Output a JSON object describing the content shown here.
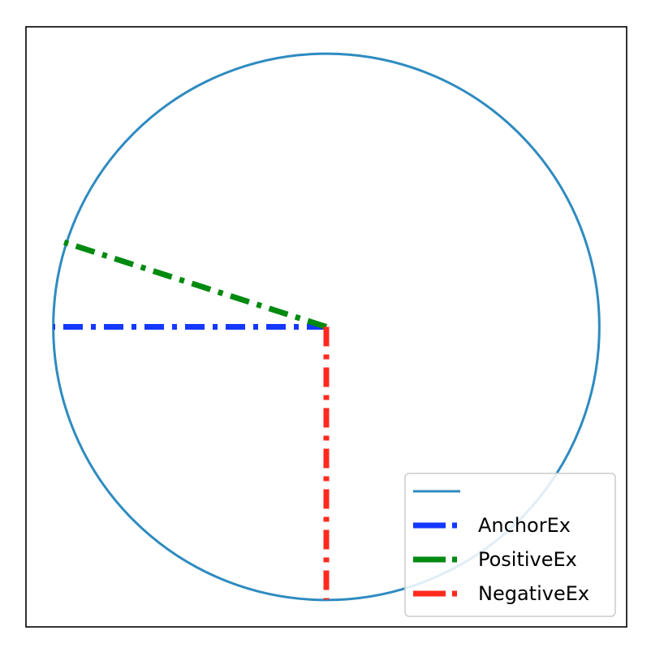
{
  "chart_data": {
    "type": "line",
    "title": "",
    "xlabel": "",
    "ylabel": "",
    "xlim": [
      -1.1,
      1.1
    ],
    "ylim": [
      -1.1,
      1.1
    ],
    "grid": false,
    "ticks_visible": false,
    "legend_position": "lower-right",
    "aspect": "equal",
    "series": [
      {
        "kind": "circle",
        "label": "",
        "center": [
          0,
          0
        ],
        "radius": 1,
        "color": "#2E8BC0",
        "style": "solid"
      },
      {
        "kind": "segment",
        "label": "AnchorEx",
        "from": [
          0,
          0
        ],
        "to": [
          -1,
          0
        ],
        "color": "#1538FF",
        "style": "dashdot"
      },
      {
        "kind": "segment",
        "label": "PositiveEx",
        "from": [
          0,
          0
        ],
        "to": [
          -0.96,
          0.31
        ],
        "color": "#008A10",
        "style": "dashdot"
      },
      {
        "kind": "segment",
        "label": "NegativeEx",
        "from": [
          0,
          0
        ],
        "to": [
          0,
          -1
        ],
        "color": "#FF2A1E",
        "style": "dashdot"
      }
    ]
  }
}
